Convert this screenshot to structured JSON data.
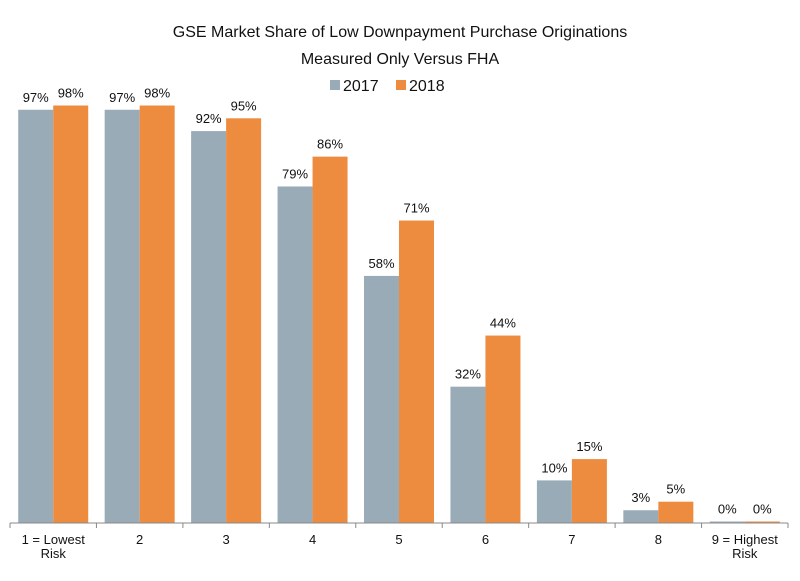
{
  "chart_data": {
    "type": "bar",
    "title": "GSE Market Share of Low Downpayment Purchase Originations",
    "subtitle": "Measured Only Versus FHA",
    "xlabel": "",
    "ylabel": "",
    "ylim": [
      0,
      100
    ],
    "grid": false,
    "legend_position": "top-center",
    "categories": [
      [
        "1 = Lowest",
        "Risk"
      ],
      [
        "2"
      ],
      [
        "3"
      ],
      [
        "4"
      ],
      [
        "5"
      ],
      [
        "6"
      ],
      [
        "7"
      ],
      [
        "8"
      ],
      [
        "9 = Highest",
        "Risk"
      ]
    ],
    "series": [
      {
        "name": "2017",
        "color": "#9AABB8",
        "values": [
          97,
          97,
          92,
          79,
          58,
          32,
          10,
          3,
          0
        ],
        "labels": [
          "97%",
          "97%",
          "92%",
          "79%",
          "58%",
          "32%",
          "10%",
          "3%",
          "0%"
        ]
      },
      {
        "name": "2018",
        "color": "#ED8B3F",
        "values": [
          98,
          98,
          95,
          86,
          71,
          44,
          15,
          5,
          0
        ],
        "labels": [
          "98%",
          "98%",
          "95%",
          "86%",
          "71%",
          "44%",
          "15%",
          "5%",
          "0%"
        ]
      }
    ]
  }
}
